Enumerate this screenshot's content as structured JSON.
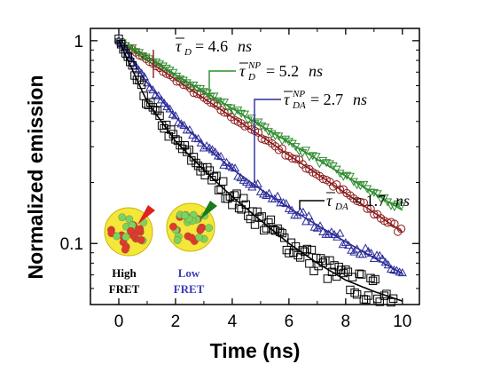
{
  "chart_data": {
    "type": "scatter",
    "title": "",
    "xlabel": "Time (ns)",
    "ylabel": "Normalized emission",
    "xlim": [
      -1,
      10.6
    ],
    "ylim": [
      0.05,
      1.15
    ],
    "yscale": "log",
    "xticks": [
      "0",
      "2",
      "4",
      "6",
      "8",
      "10"
    ],
    "yticks": [
      "0.1",
      "1"
    ],
    "grid": false,
    "series": [
      {
        "key": "tau_D",
        "marker": "circle",
        "color": "#8b1a1a",
        "tau_ns": 4.6,
        "amp": 1.0,
        "points": [
          [
            0,
            1.0
          ],
          [
            1,
            0.8
          ],
          [
            2,
            0.645
          ],
          [
            3,
            0.52
          ],
          [
            4,
            0.42
          ],
          [
            5,
            0.34
          ],
          [
            6,
            0.272
          ],
          [
            7,
            0.22
          ],
          [
            8,
            0.177
          ],
          [
            9,
            0.142
          ],
          [
            10,
            0.114
          ]
        ]
      },
      {
        "key": "tau_D_NP",
        "marker": "inverted-triangle",
        "color": "#2e8b2e",
        "tau_ns": 5.2,
        "amp": 1.0,
        "points": [
          [
            0,
            1.0
          ],
          [
            1,
            0.825
          ],
          [
            2,
            0.68
          ],
          [
            3,
            0.562
          ],
          [
            4,
            0.463
          ],
          [
            5,
            0.382
          ],
          [
            6,
            0.315
          ],
          [
            7,
            0.26
          ],
          [
            8,
            0.215
          ],
          [
            9,
            0.177
          ],
          [
            10,
            0.146
          ]
        ]
      },
      {
        "key": "tau_DA_NP",
        "marker": "triangle",
        "color": "#2b2b99",
        "tau_ns": 2.7,
        "amp": 1.0,
        "points": [
          [
            0,
            1.0
          ],
          [
            1,
            0.62
          ],
          [
            2,
            0.42
          ],
          [
            3,
            0.305
          ],
          [
            4,
            0.233
          ],
          [
            5,
            0.185
          ],
          [
            6,
            0.15
          ],
          [
            7,
            0.123
          ],
          [
            8,
            0.102
          ],
          [
            9,
            0.085
          ],
          [
            10,
            0.071
          ]
        ]
      },
      {
        "key": "tau_DA",
        "marker": "square",
        "color": "#000000",
        "tau_ns": 1.7,
        "amp": 1.0,
        "points": [
          [
            0,
            1.0
          ],
          [
            1,
            0.5
          ],
          [
            2,
            0.32
          ],
          [
            3,
            0.23
          ],
          [
            4,
            0.17
          ],
          [
            5,
            0.13
          ],
          [
            6,
            0.1
          ],
          [
            7,
            0.08
          ],
          [
            8,
            0.066
          ],
          [
            9,
            0.058
          ],
          [
            10,
            0.052
          ]
        ]
      }
    ],
    "annotations": [
      {
        "symbol": "τ",
        "sub": "D",
        "sup": "",
        "value": "= 4.6",
        "unit": "ns",
        "series": "tau_D",
        "color": "#8b1a1a"
      },
      {
        "symbol": "τ",
        "sub": "D",
        "sup": "NP",
        "value": "= 5.2",
        "unit": "ns",
        "series": "tau_D_NP",
        "color": "#2e8b2e"
      },
      {
        "symbol": "τ",
        "sub": "DA",
        "sup": "NP",
        "value": "= 2.7",
        "unit": "ns",
        "series": "tau_DA_NP",
        "color": "#2b2b99"
      },
      {
        "symbol": "τ",
        "sub": "DA",
        "sup": "",
        "value": "= 1.7",
        "unit": "ns",
        "series": "tau_DA",
        "color": "#000000"
      }
    ]
  },
  "inset": {
    "high_label_1": "High",
    "high_label_2": "FRET",
    "low_label_1": "Low",
    "low_label_2": "FRET",
    "high_color": "#000000",
    "low_color": "#3b3bb5",
    "high_arrow_color": "#e02020",
    "low_arrow_color": "#1a7a1a"
  }
}
